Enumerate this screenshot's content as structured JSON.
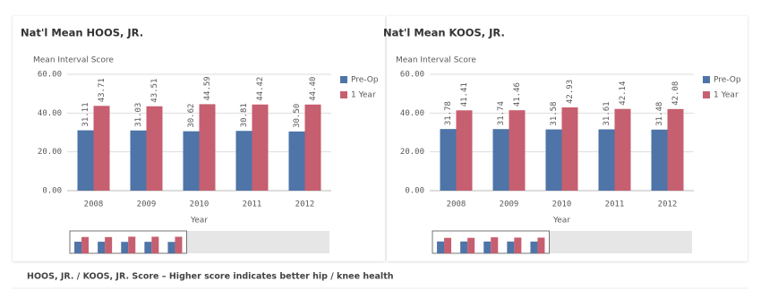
{
  "chart_data": [
    {
      "type": "bar",
      "title": "Nat'l Mean HOOS, JR.",
      "y_label": "Mean Interval Score",
      "x_label": "Year",
      "categories": [
        "2008",
        "2009",
        "2010",
        "2011",
        "2012"
      ],
      "series": [
        {
          "name": "Pre-Op",
          "color": "#4e74a8",
          "values": [
            31.11,
            31.03,
            30.62,
            30.81,
            30.5
          ],
          "value_labels": [
            "31.11",
            "31.03",
            "30.62",
            "30.81",
            "30.50"
          ]
        },
        {
          "name": "1 Year",
          "color": "#c65f6f",
          "values": [
            43.71,
            43.51,
            44.59,
            44.42,
            44.4
          ],
          "value_labels": [
            "43.71",
            "43.51",
            "44.59",
            "44.42",
            "44.40"
          ]
        }
      ],
      "ylim": [
        0,
        60
      ],
      "yticks": [
        {
          "value": 0,
          "label": "0.00"
        },
        {
          "value": 20,
          "label": "20.00"
        },
        {
          "value": 40,
          "label": "40.00"
        },
        {
          "value": 60,
          "label": "60.00"
        }
      ],
      "grid": true,
      "legend": "right"
    },
    {
      "type": "bar",
      "title": "Nat'l Mean KOOS, JR.",
      "y_label": "Mean Interval Score",
      "x_label": "Year",
      "categories": [
        "2008",
        "2009",
        "2010",
        "2011",
        "2012"
      ],
      "series": [
        {
          "name": "Pre-Op",
          "color": "#4e74a8",
          "values": [
            31.78,
            31.74,
            31.58,
            31.61,
            31.48
          ],
          "value_labels": [
            "31.78",
            "31.74",
            "31.58",
            "31.61",
            "31.48"
          ]
        },
        {
          "name": "1 Year",
          "color": "#c65f6f",
          "values": [
            41.41,
            41.46,
            42.93,
            42.14,
            42.08
          ],
          "value_labels": [
            "41.41",
            "41.46",
            "42.93",
            "42.14",
            "42.08"
          ]
        }
      ],
      "ylim": [
        0,
        60
      ],
      "yticks": [
        {
          "value": 0,
          "label": "0.00"
        },
        {
          "value": 20,
          "label": "20.00"
        },
        {
          "value": 40,
          "label": "40.00"
        },
        {
          "value": 60,
          "label": "60.00"
        }
      ],
      "grid": true,
      "legend": "right"
    }
  ],
  "footer": "HOOS, JR. / KOOS, JR. Score – Higher score indicates better hip / knee health"
}
